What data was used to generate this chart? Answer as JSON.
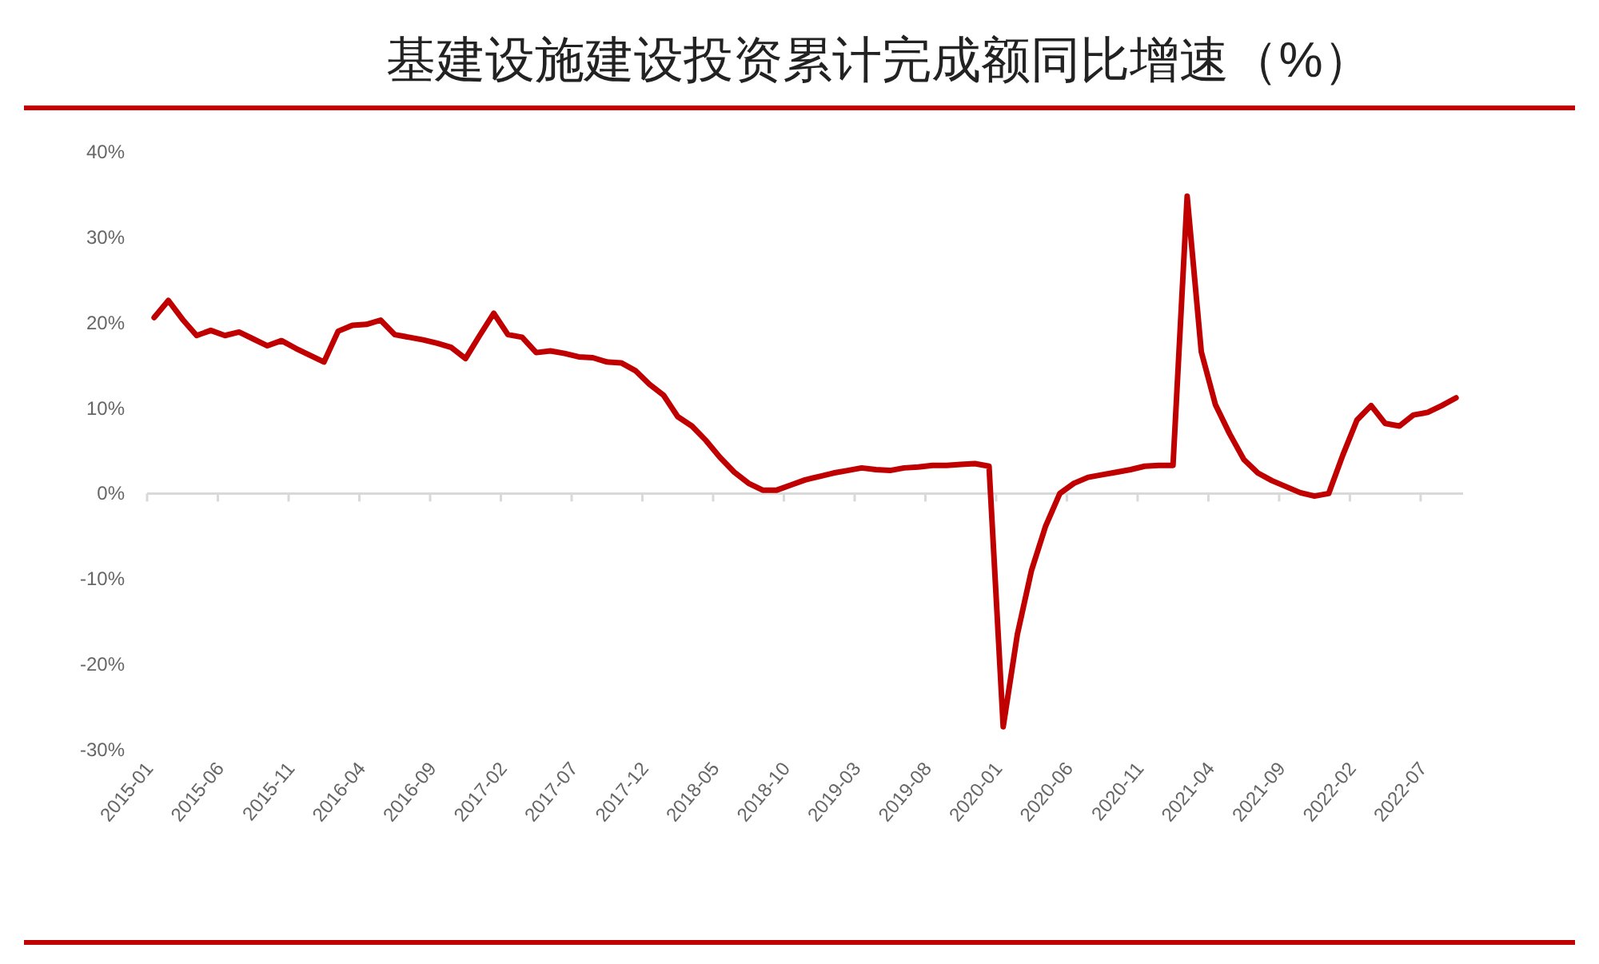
{
  "chart_data": {
    "type": "line",
    "title": "基建设施建设投资累计完成额同比增速（%）",
    "categories": [
      "2015-01",
      null,
      null,
      null,
      null,
      "2015-06",
      null,
      null,
      null,
      null,
      "2015-11",
      null,
      null,
      null,
      null,
      "2016-04",
      null,
      null,
      null,
      null,
      "2016-09",
      null,
      null,
      null,
      null,
      "2017-02",
      null,
      null,
      null,
      null,
      "2017-07",
      null,
      null,
      null,
      null,
      "2017-12",
      null,
      null,
      null,
      null,
      "2018-05",
      null,
      null,
      null,
      null,
      "2018-10",
      null,
      null,
      null,
      null,
      "2019-03",
      null,
      null,
      null,
      null,
      "2019-08",
      null,
      null,
      null,
      null,
      "2020-01",
      null,
      null,
      null,
      null,
      "2020-06",
      null,
      null,
      null,
      null,
      "2020-11",
      null,
      null,
      null,
      null,
      "2021-04",
      null,
      null,
      null,
      null,
      "2021-09",
      null,
      null,
      null,
      null,
      "2022-02",
      null,
      null,
      null,
      null,
      "2022-07",
      null,
      null
    ],
    "series": [
      {
        "color": "#c00000",
        "values": [
          20.6,
          22.6,
          20.4,
          18.5,
          19.1,
          18.5,
          18.9,
          18.1,
          17.3,
          17.9,
          17.0,
          16.2,
          15.4,
          19.0,
          19.7,
          19.8,
          20.3,
          18.6,
          18.3,
          18.0,
          17.6,
          17.1,
          15.8,
          18.5,
          21.1,
          18.6,
          18.3,
          16.5,
          16.7,
          16.4,
          16.0,
          15.9,
          15.4,
          15.3,
          14.4,
          12.8,
          11.5,
          9.0,
          7.9,
          6.2,
          4.2,
          2.5,
          1.2,
          0.4,
          0.4,
          1.0,
          1.6,
          2.0,
          2.4,
          2.7,
          3.0,
          2.8,
          2.7,
          3.0,
          3.1,
          3.3,
          3.3,
          3.4,
          3.5,
          3.2,
          -27.3,
          -16.5,
          -9.0,
          -3.8,
          0.0,
          1.2,
          1.9,
          2.2,
          2.5,
          2.8,
          3.2,
          3.3,
          3.3,
          34.8,
          16.6,
          10.4,
          7.0,
          4.0,
          2.4,
          1.5,
          0.8,
          0.1,
          -0.3,
          0.0,
          4.5,
          8.6,
          10.3,
          8.2,
          7.9,
          9.2,
          9.5,
          10.3,
          11.2
        ]
      }
    ],
    "ylim": [
      -30,
      40
    ],
    "yticks": [
      {
        "value": 40,
        "label": "40%"
      },
      {
        "value": 30,
        "label": "30%"
      },
      {
        "value": 20,
        "label": "20%"
      },
      {
        "value": 10,
        "label": "10%"
      },
      {
        "value": 0,
        "label": "0%"
      },
      {
        "value": -10,
        "label": "-10%"
      },
      {
        "value": -20,
        "label": "-20%"
      },
      {
        "value": -30,
        "label": "-30%"
      }
    ],
    "marker": "none",
    "line_style": "solid"
  }
}
